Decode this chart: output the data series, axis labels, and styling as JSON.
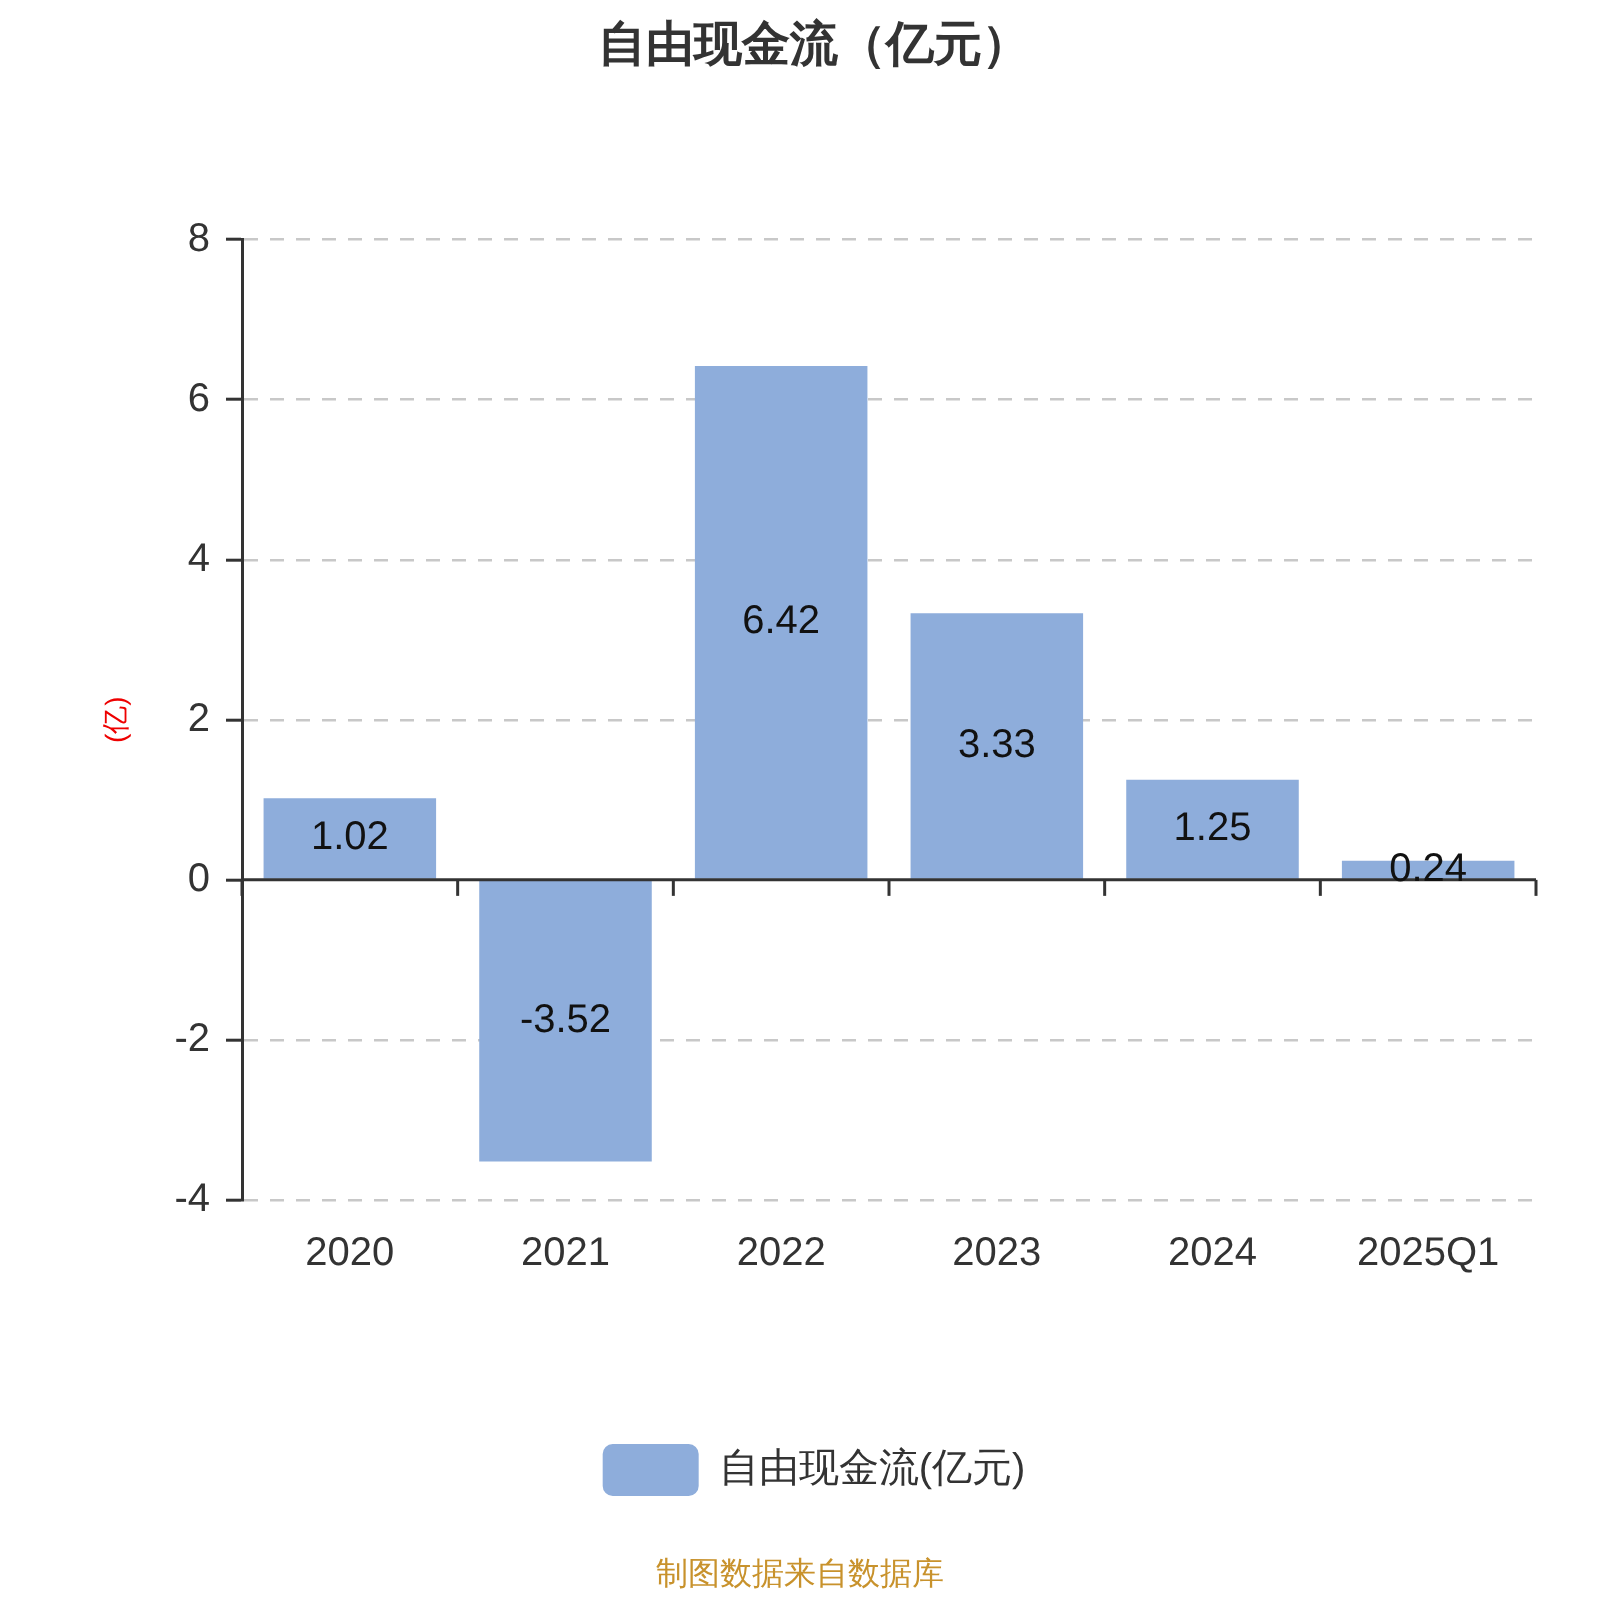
{
  "chart_data": {
    "type": "bar",
    "title": "自由现金流（亿元）",
    "ylabel": "(亿)",
    "categories": [
      "2020",
      "2021",
      "2022",
      "2023",
      "2024",
      "2025Q1"
    ],
    "series": [
      {
        "name": "自由现金流(亿元)",
        "color": "#8eaddb",
        "values": [
          1.02,
          -3.52,
          6.42,
          3.33,
          1.25,
          0.24
        ]
      }
    ],
    "ylim": [
      -4,
      8
    ],
    "yticks": [
      -4,
      -2,
      0,
      2,
      4,
      6,
      8
    ],
    "grid": "y",
    "legend": "bottom",
    "data_labels": true,
    "annotations": [
      "制图数据来自数据库"
    ]
  }
}
